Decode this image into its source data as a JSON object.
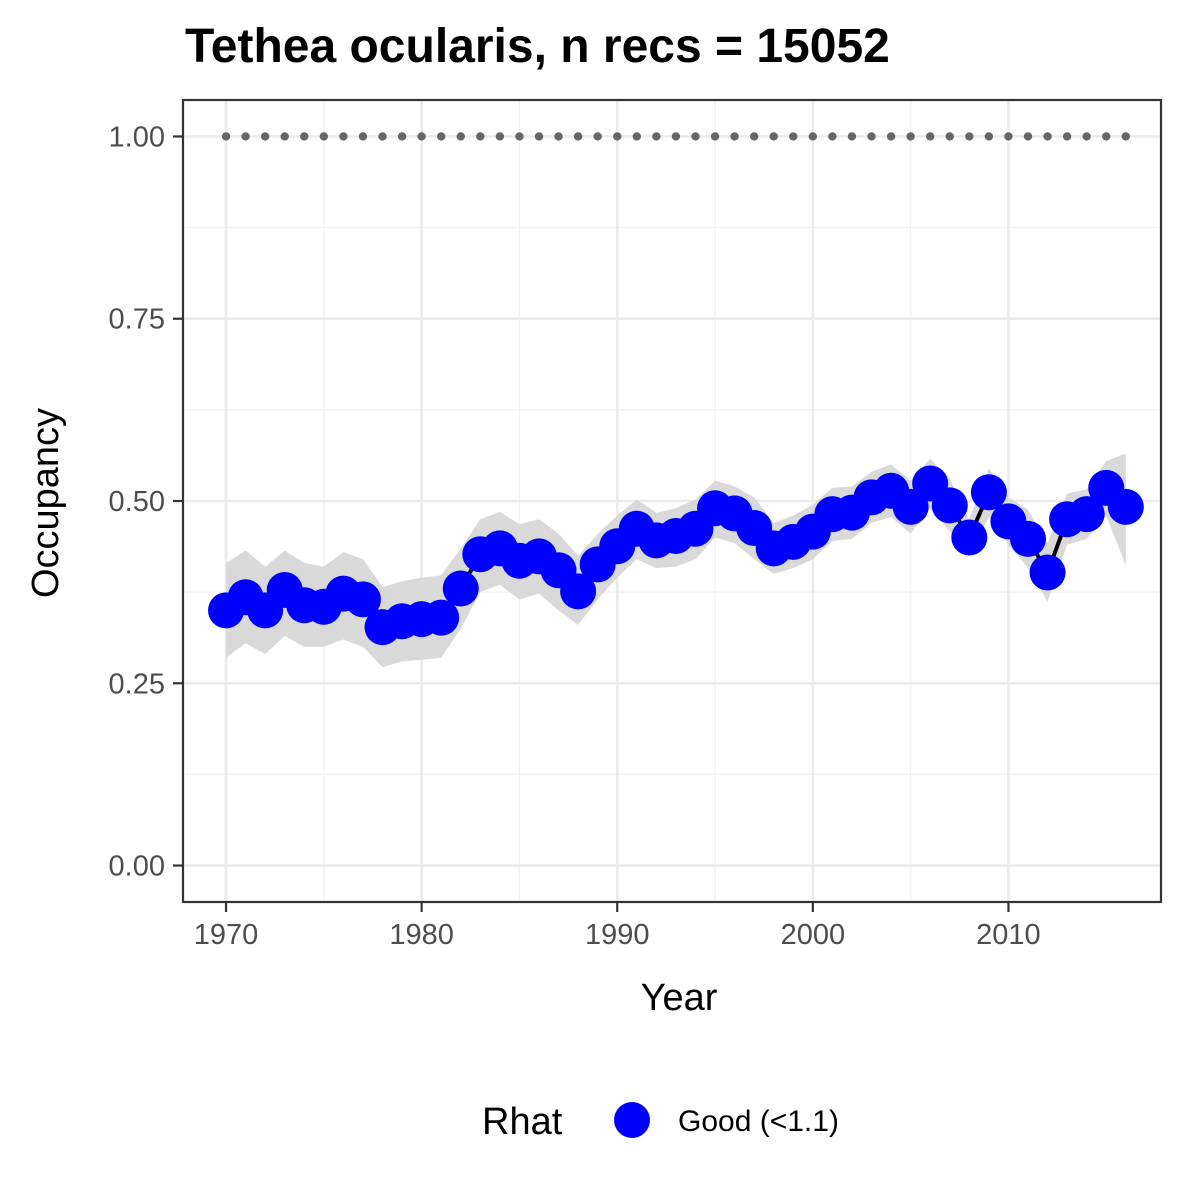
{
  "chart_data": {
    "type": "line",
    "title": "Tethea ocularis, n recs = 15052",
    "xlabel": "Year",
    "ylabel": "Occupancy",
    "xlim": [
      1967.8,
      2017.8
    ],
    "ylim": [
      -0.05,
      1.05
    ],
    "x_ticks": [
      1970,
      1980,
      1990,
      2000,
      2010
    ],
    "x_tick_labels": [
      "1970",
      "1980",
      "1990",
      "2000",
      "2010"
    ],
    "y_ticks": [
      0,
      0.25,
      0.5,
      0.75,
      1.0
    ],
    "y_tick_labels": [
      "0.00",
      "0.25",
      "0.50",
      "0.75",
      "1.00"
    ],
    "grid": true,
    "legend": {
      "position": "bottom",
      "title": "Rhat",
      "entries": [
        {
          "label": "Good (<1.1)",
          "color": "#0000ff"
        }
      ]
    },
    "reference_line": {
      "y": 1.0,
      "style": "dotted",
      "color": "#666666"
    },
    "series": [
      {
        "name": "Good (<1.1)",
        "color": "#0000ff",
        "line_color": "#000000",
        "ribbon_color": "#d9d9d9",
        "x": [
          1970,
          1971,
          1972,
          1973,
          1974,
          1975,
          1976,
          1977,
          1978,
          1979,
          1980,
          1981,
          1982,
          1983,
          1984,
          1985,
          1986,
          1987,
          1988,
          1989,
          1990,
          1991,
          1992,
          1993,
          1994,
          1995,
          1996,
          1997,
          1998,
          1999,
          2000,
          2001,
          2002,
          2003,
          2004,
          2005,
          2006,
          2007,
          2008,
          2009,
          2010,
          2011,
          2012,
          2013,
          2014,
          2015,
          2016
        ],
        "y": [
          0.35,
          0.368,
          0.35,
          0.378,
          0.357,
          0.355,
          0.373,
          0.365,
          0.327,
          0.335,
          0.338,
          0.34,
          0.38,
          0.427,
          0.435,
          0.418,
          0.424,
          0.405,
          0.376,
          0.413,
          0.438,
          0.462,
          0.446,
          0.452,
          0.462,
          0.49,
          0.483,
          0.463,
          0.435,
          0.444,
          0.458,
          0.482,
          0.484,
          0.505,
          0.514,
          0.492,
          0.524,
          0.494,
          0.45,
          0.512,
          0.472,
          0.448,
          0.402,
          0.475,
          0.482,
          0.518,
          0.492
        ],
        "lower": [
          0.285,
          0.305,
          0.29,
          0.315,
          0.3,
          0.3,
          0.31,
          0.3,
          0.272,
          0.28,
          0.282,
          0.285,
          0.325,
          0.375,
          0.385,
          0.365,
          0.373,
          0.35,
          0.33,
          0.365,
          0.395,
          0.42,
          0.408,
          0.41,
          0.42,
          0.45,
          0.442,
          0.42,
          0.4,
          0.408,
          0.42,
          0.445,
          0.448,
          0.47,
          0.478,
          0.455,
          0.49,
          0.458,
          0.425,
          0.478,
          0.44,
          0.408,
          0.362,
          0.44,
          0.448,
          0.48,
          0.412
        ],
        "upper": [
          0.415,
          0.432,
          0.41,
          0.432,
          0.415,
          0.41,
          0.43,
          0.42,
          0.382,
          0.39,
          0.395,
          0.398,
          0.435,
          0.475,
          0.485,
          0.468,
          0.475,
          0.455,
          0.425,
          0.455,
          0.48,
          0.502,
          0.484,
          0.49,
          0.502,
          0.528,
          0.52,
          0.505,
          0.47,
          0.48,
          0.495,
          0.518,
          0.52,
          0.54,
          0.55,
          0.528,
          0.558,
          0.53,
          0.475,
          0.545,
          0.505,
          0.488,
          0.442,
          0.51,
          0.516,
          0.555,
          0.565
        ]
      }
    ]
  }
}
